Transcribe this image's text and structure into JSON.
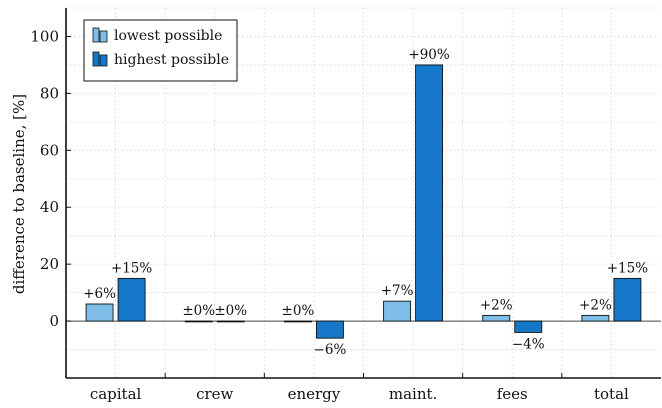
{
  "chart_data": {
    "type": "bar",
    "title": "",
    "xlabel": "",
    "ylabel": "difference to baseline, [%]",
    "ylim": [
      -20,
      110
    ],
    "yticks": [
      0,
      20,
      40,
      60,
      80,
      100
    ],
    "grid": true,
    "legend_position": "top-left",
    "categories": [
      "capital",
      "crew",
      "energy",
      "maint.",
      "fees",
      "total"
    ],
    "series": [
      {
        "name": "lowest possible",
        "color": "#7dbde8",
        "values": [
          6,
          0,
          0,
          7,
          2,
          2
        ],
        "labels": [
          "+6%",
          "±0%",
          "±0%",
          "+7%",
          "+2%",
          "+2%"
        ]
      },
      {
        "name": "highest possible",
        "color": "#1477c8",
        "values": [
          15,
          0,
          -6,
          90,
          -4,
          15
        ],
        "labels": [
          "+15%",
          "±0%",
          "−6%",
          "+90%",
          "−4%",
          "+15%"
        ]
      }
    ]
  }
}
